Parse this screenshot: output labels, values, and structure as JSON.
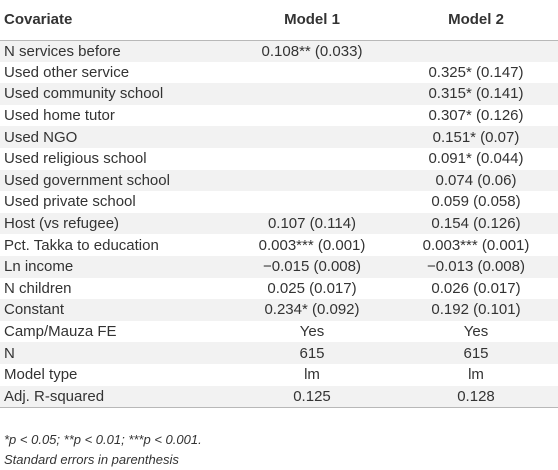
{
  "table": {
    "headers": [
      "Covariate",
      "Model 1",
      "Model 2"
    ],
    "rows": [
      [
        "N services before",
        "0.108** (0.033)",
        ""
      ],
      [
        "Used other service",
        "",
        "0.325* (0.147)"
      ],
      [
        "Used community school",
        "",
        "0.315* (0.141)"
      ],
      [
        "Used home tutor",
        "",
        "0.307* (0.126)"
      ],
      [
        "Used NGO",
        "",
        "0.151* (0.07)"
      ],
      [
        "Used religious school",
        "",
        "0.091* (0.044)"
      ],
      [
        "Used government school",
        "",
        "0.074 (0.06)"
      ],
      [
        "Used private school",
        "",
        "0.059 (0.058)"
      ],
      [
        "Host (vs refugee)",
        "0.107 (0.114)",
        "0.154 (0.126)"
      ],
      [
        "Pct. Takka to education",
        "0.003*** (0.001)",
        "0.003*** (0.001)"
      ],
      [
        "Ln income",
        "−0.015 (0.008)",
        "−0.013 (0.008)"
      ],
      [
        "N children",
        "0.025 (0.017)",
        "0.026 (0.017)"
      ],
      [
        "Constant",
        "0.234* (0.092)",
        "0.192 (0.101)"
      ],
      [
        "Camp/Mauza FE",
        "Yes",
        "Yes"
      ],
      [
        "N",
        "615",
        "615"
      ],
      [
        "Model type",
        "lm",
        "lm"
      ],
      [
        "Adj. R-squared",
        "0.125",
        "0.128"
      ]
    ]
  },
  "notes": {
    "significance": "*p < 0.05; **p < 0.01; ***p < 0.001.",
    "errors": "Standard errors in parenthesis"
  }
}
